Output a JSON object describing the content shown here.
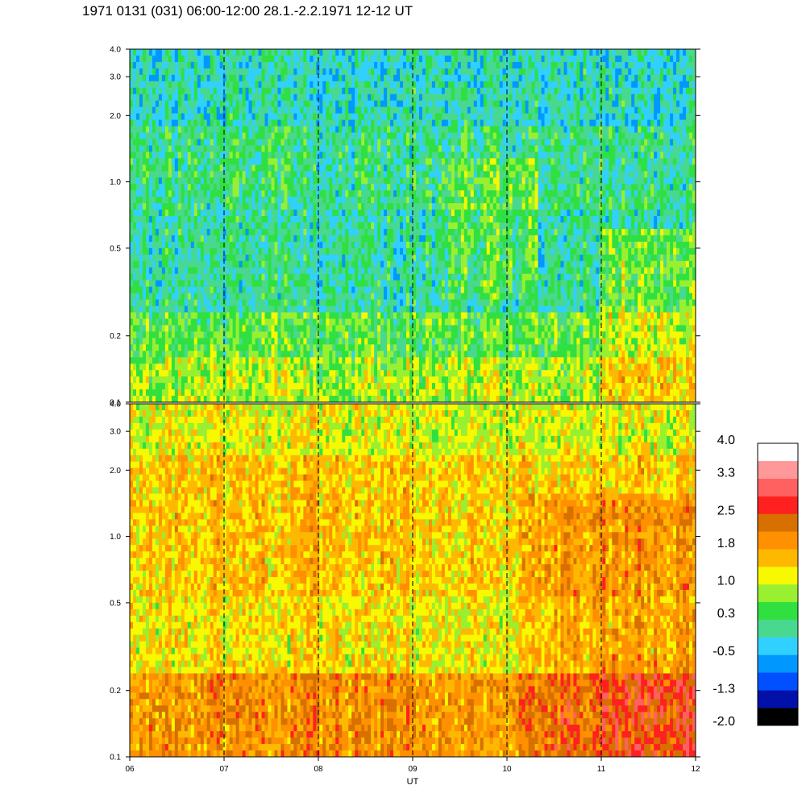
{
  "title": "1971 0131 (031) 06:00-12:00 28.1.-2.2.1971  12-12 UT",
  "chart_data": {
    "type": "heatmap",
    "panels": [
      {
        "name": "upper",
        "dominant": "green-cyan"
      },
      {
        "name": "lower",
        "dominant": "yellow-orange"
      }
    ],
    "xlabel": "UT",
    "x_ticks": [
      "06",
      "07",
      "08",
      "09",
      "10",
      "11",
      "12"
    ],
    "xlim": [
      6,
      12
    ],
    "y_ticks": [
      {
        "value": 0.1,
        "label": "0.1"
      },
      {
        "value": 0.2,
        "label": "0.2"
      },
      {
        "value": 0.5,
        "label": "0.5"
      },
      {
        "value": 1.0,
        "label": "1.0"
      },
      {
        "value": 2.0,
        "label": "2.0"
      },
      {
        "value": 3.0,
        "label": "3.0"
      },
      {
        "value": 4.0,
        "label": "4.0"
      }
    ],
    "ylim": [
      0.1,
      4.0
    ],
    "y_scale": "log",
    "dashed_gridlines_x": [
      7,
      8,
      9,
      10,
      11
    ],
    "colorbar": {
      "range": [
        -2.0,
        4.0
      ],
      "labels": [
        "4.0",
        "3.3",
        "2.5",
        "1.8",
        "1.0",
        "0.3",
        "-0.5",
        "-1.3",
        "-2.0"
      ],
      "colors": [
        "#000000",
        "#0010a8",
        "#0050ff",
        "#0098ff",
        "#30d0ff",
        "#48d890",
        "#30e040",
        "#98f030",
        "#f8f800",
        "#ffb800",
        "#ff9000",
        "#d87000",
        "#ff2020",
        "#ff6060",
        "#ff9898",
        "#ffffff"
      ]
    }
  }
}
